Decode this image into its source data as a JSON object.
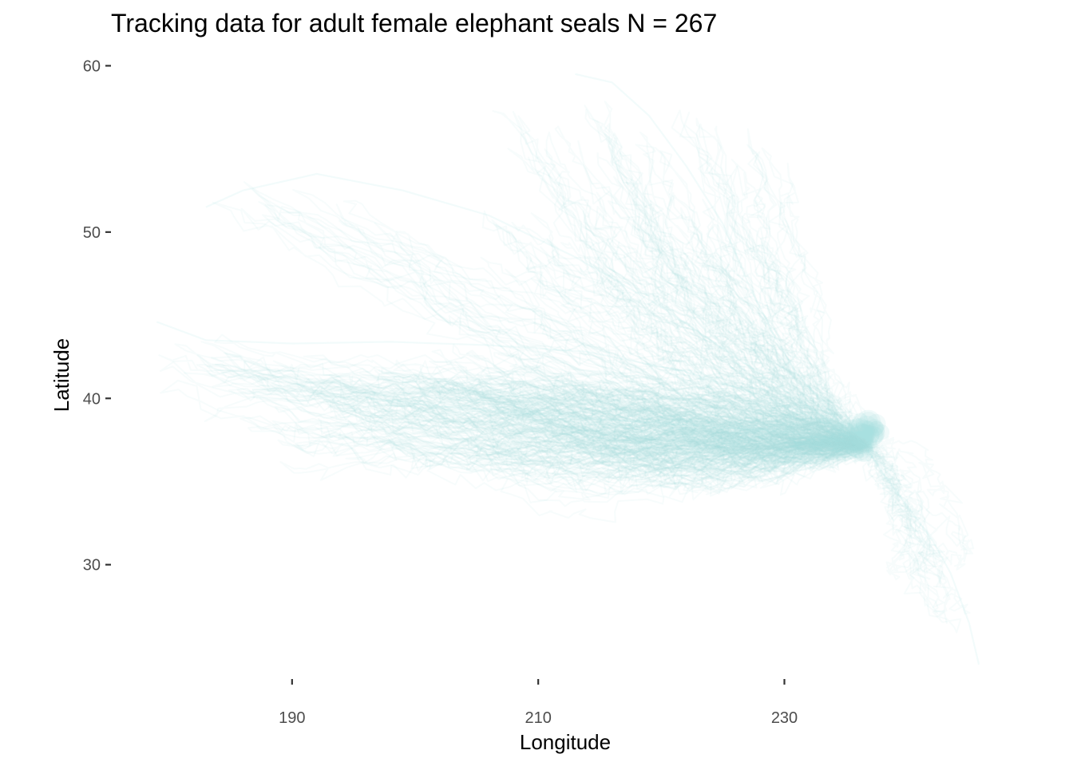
{
  "chart_data": {
    "type": "line",
    "title": "Tracking data for adult female elephant seals N = 267",
    "xlabel": "Longitude",
    "ylabel": "Latitude",
    "xlim": [
      176,
      248
    ],
    "ylim": [
      22.5,
      60.5
    ],
    "xticks": [
      190,
      210,
      230
    ],
    "yticks": [
      30,
      40,
      50,
      60
    ],
    "grid": false,
    "legend": "none",
    "n_tracks": 267,
    "colony": {
      "lon": 236.5,
      "lat": 37.2
    },
    "track_color": "#a6e1e1",
    "track_opacity": 0.09,
    "representative_tracks": [
      {
        "name": "",
        "x": [
          236.5,
          233,
          228,
          222,
          214,
          206,
          198,
          190,
          183,
          179
        ],
        "y": [
          37.2,
          38.6,
          40.2,
          41.6,
          42.8,
          43.2,
          43.4,
          43.3,
          43.5,
          44.6
        ]
      },
      {
        "name": "",
        "x": [
          236.5,
          234,
          231,
          229,
          227,
          225,
          222,
          219,
          216,
          213
        ],
        "y": [
          37.2,
          39.0,
          41.5,
          44.0,
          47.0,
          50.5,
          54.0,
          57.0,
          59.0,
          59.5
        ]
      },
      {
        "name": "",
        "x": [
          236.5,
          232,
          226,
          220,
          213,
          206,
          199,
          192,
          186,
          183
        ],
        "y": [
          37.2,
          39.5,
          42.5,
          45.5,
          48.5,
          51.0,
          52.5,
          53.5,
          52.5,
          51.5
        ]
      },
      {
        "name": "",
        "x": [
          236.5,
          238,
          240,
          242,
          243.5,
          245,
          245.8
        ],
        "y": [
          37.2,
          35.5,
          33.5,
          31.5,
          29.5,
          26.5,
          24.0
        ]
      },
      {
        "name": "",
        "x": [
          236.5,
          230,
          222,
          214,
          207,
          201,
          196
        ],
        "y": [
          37.2,
          38.0,
          38.4,
          38.8,
          39.2,
          39.6,
          40.0
        ]
      }
    ]
  }
}
